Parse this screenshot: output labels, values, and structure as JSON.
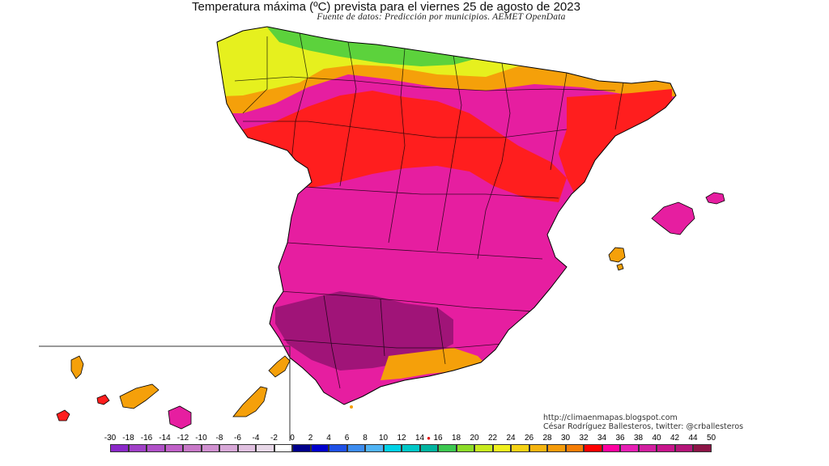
{
  "map": {
    "title": "Temperatura máxima (ºC) prevista para el viernes 25 de agosto de 2023",
    "subtitle": "Fuente de datos: Predicción por municipios. AEMET OpenData",
    "credit_url": "http://climaenmapas.blogspot.com",
    "credit_author": "César Rodríguez Ballesteros, twitter: @crballesteros"
  },
  "legend": {
    "ticks": [
      "-30",
      "-18",
      "-16",
      "-14",
      "-12",
      "-10",
      "-8",
      "-6",
      "-4",
      "-2",
      "0",
      "2",
      "4",
      "6",
      "8",
      "10",
      "12",
      "14",
      "16",
      "18",
      "20",
      "22",
      "24",
      "26",
      "28",
      "30",
      "32",
      "34",
      "36",
      "38",
      "40",
      "42",
      "44",
      "50"
    ],
    "colors": [
      "#8a28c8",
      "#a040c8",
      "#b050c8",
      "#c060c8",
      "#c878c8",
      "#d090d0",
      "#d8a8d8",
      "#e0c0e0",
      "#e8d8e8",
      "#ffffff",
      "#00008b",
      "#0000cd",
      "#1e50e6",
      "#3c8cf0",
      "#50b4f5",
      "#00d2e6",
      "#00c8c8",
      "#00b4a0",
      "#3cc850",
      "#8cdc28",
      "#c8eb1e",
      "#f0f01e",
      "#f5d214",
      "#f5b40f",
      "#f59b0a",
      "#f57d05",
      "#ff0000",
      "#ff00a0",
      "#e61eb4",
      "#d21ea0",
      "#c8148c",
      "#b41478",
      "#8c1446"
    ],
    "marker_tick": "14"
  },
  "zones": {
    "north_cool": "#e6f01e",
    "cantabrian": "#5cd23c",
    "mid_warm": "#f5a00a",
    "hot_red": "#ff1e1e",
    "very_hot": "#e61ea0",
    "extreme": "#a01478"
  }
}
